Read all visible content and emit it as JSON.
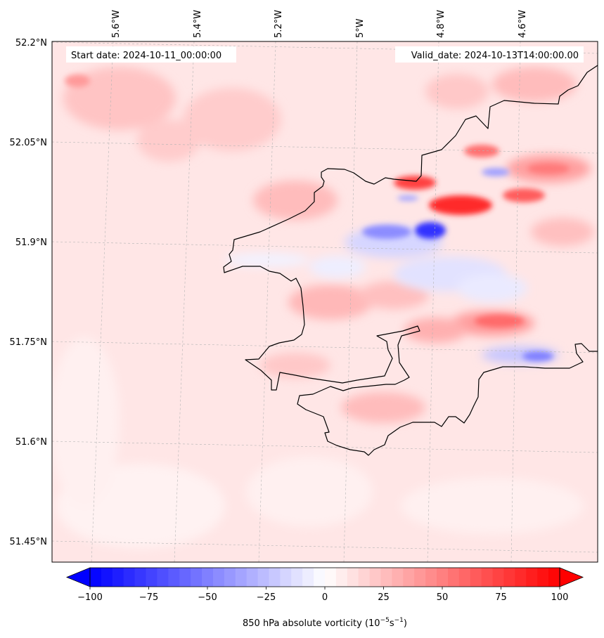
{
  "header": {
    "start_date": "Start date: 2024-10-11_00:00:00",
    "valid_date": "Valid_date: 2024-10-13T14:00:00.00"
  },
  "axes": {
    "lon_labels": [
      "5.6°W",
      "5.4°W",
      "5.2°W",
      "5°W",
      "4.8°W",
      "4.6°W"
    ],
    "lat_labels": [
      "52.2°N",
      "52.05°N",
      "51.9°N",
      "51.75°N",
      "51.6°N",
      "51.45°N"
    ]
  },
  "colorbar": {
    "ticks": [
      "−100",
      "−75",
      "−50",
      "−25",
      "0",
      "25",
      "50",
      "75",
      "100"
    ],
    "label_main": "850 hPa absolute vorticity (10",
    "label_exp1": "−5",
    "label_mid": "s",
    "label_exp2": "−1",
    "label_end": ")",
    "min": -100,
    "max": 100,
    "levels": 42,
    "colormap": "bwr",
    "colors": {
      "low": "#0000ff",
      "mid": "#ffffff",
      "high": "#ff0000"
    }
  },
  "colors": {
    "coastline": "#000000",
    "background_field": "#ffe6e6",
    "gridline": "#b4b4b4"
  }
}
